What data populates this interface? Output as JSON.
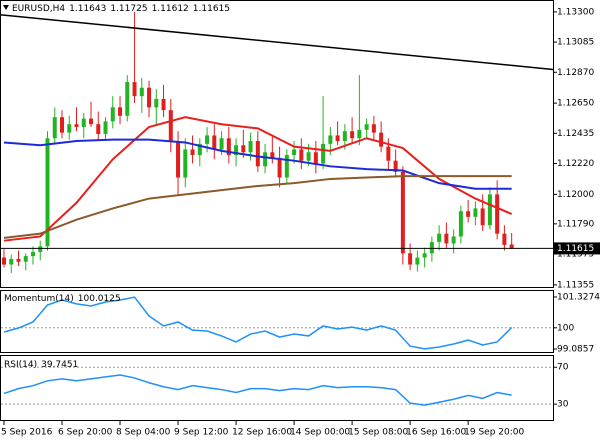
{
  "chart_data": [
    {
      "type": "candlestick",
      "symbol": "EURUSD,H4",
      "open": [
        1.1155,
        1.115,
        1.1154,
        1.1152,
        1.1156,
        1.1159,
        1.1163,
        1.124,
        1.1255,
        1.1244,
        1.125,
        1.1248,
        1.1254,
        1.125,
        1.1243,
        1.1252,
        1.1262,
        1.1256,
        1.128,
        1.127,
        1.1276,
        1.1262,
        1.1268,
        1.126,
        1.1238,
        1.1212,
        1.1232,
        1.1228,
        1.1236,
        1.1242,
        1.1232,
        1.124,
        1.1228,
        1.1235,
        1.123,
        1.1238,
        1.122,
        1.123,
        1.1226,
        1.1212,
        1.1228,
        1.1232,
        1.1224,
        1.123,
        1.1222,
        1.1236,
        1.1242,
        1.1238,
        1.1245,
        1.124,
        1.1246,
        1.125,
        1.1244,
        1.1234,
        1.1224,
        1.1216,
        1.1158,
        1.115,
        1.1155,
        1.1158,
        1.1166,
        1.1172,
        1.1165,
        1.117,
        1.1188,
        1.1184,
        1.119,
        1.1178,
        1.12,
        1.1172,
        1.11643
      ],
      "high": [
        1.1161,
        1.1157,
        1.116,
        1.1158,
        1.1163,
        1.1167,
        1.1245,
        1.1262,
        1.126,
        1.1256,
        1.1262,
        1.1258,
        1.1266,
        1.1259,
        1.1255,
        1.127,
        1.127,
        1.1285,
        1.133,
        1.1283,
        1.1281,
        1.1275,
        1.1278,
        1.1268,
        1.1245,
        1.124,
        1.1242,
        1.124,
        1.1248,
        1.125,
        1.1245,
        1.1248,
        1.124,
        1.1246,
        1.1244,
        1.1245,
        1.1236,
        1.1242,
        1.1234,
        1.1232,
        1.1238,
        1.124,
        1.1236,
        1.1238,
        1.127,
        1.1248,
        1.1252,
        1.125,
        1.1255,
        1.1285,
        1.1254,
        1.1256,
        1.1252,
        1.124,
        1.1232,
        1.122,
        1.1165,
        1.116,
        1.1162,
        1.117,
        1.1178,
        1.118,
        1.1175,
        1.1192,
        1.1196,
        1.1195,
        1.12,
        1.1205,
        1.121,
        1.1178,
        1.11725
      ],
      "low": [
        1.1148,
        1.1144,
        1.1149,
        1.1146,
        1.115,
        1.1153,
        1.116,
        1.1236,
        1.124,
        1.1239,
        1.1245,
        1.124,
        1.1248,
        1.1238,
        1.1238,
        1.1247,
        1.125,
        1.1252,
        1.1265,
        1.1258,
        1.1255,
        1.125,
        1.1255,
        1.123,
        1.12,
        1.1205,
        1.1222,
        1.122,
        1.123,
        1.1225,
        1.1228,
        1.1222,
        1.122,
        1.1226,
        1.1224,
        1.1216,
        1.1215,
        1.1222,
        1.1205,
        1.1208,
        1.1222,
        1.1218,
        1.122,
        1.1215,
        1.1218,
        1.1228,
        1.1235,
        1.1232,
        1.1236,
        1.1235,
        1.124,
        1.1238,
        1.123,
        1.1218,
        1.1212,
        1.115,
        1.1146,
        1.1145,
        1.1148,
        1.1152,
        1.116,
        1.1162,
        1.1158,
        1.1165,
        1.118,
        1.1178,
        1.1174,
        1.1175,
        1.1168,
        1.116,
        1.11612
      ],
      "close": [
        1.115,
        1.1154,
        1.1152,
        1.1156,
        1.1159,
        1.1163,
        1.124,
        1.1255,
        1.1244,
        1.125,
        1.1248,
        1.1254,
        1.125,
        1.1243,
        1.1252,
        1.1262,
        1.1256,
        1.128,
        1.127,
        1.1276,
        1.1262,
        1.1268,
        1.126,
        1.1238,
        1.1212,
        1.1232,
        1.1228,
        1.1236,
        1.1242,
        1.1232,
        1.124,
        1.1228,
        1.1235,
        1.123,
        1.1238,
        1.122,
        1.123,
        1.1226,
        1.1212,
        1.1228,
        1.1232,
        1.1224,
        1.123,
        1.1222,
        1.1236,
        1.1242,
        1.1238,
        1.1245,
        1.124,
        1.1246,
        1.125,
        1.1244,
        1.1234,
        1.1224,
        1.1216,
        1.1158,
        1.115,
        1.1155,
        1.1158,
        1.1166,
        1.1172,
        1.1165,
        1.117,
        1.1188,
        1.1184,
        1.119,
        1.1178,
        1.12,
        1.1172,
        1.1164,
        1.11615
      ],
      "up_color": "#22b422",
      "down_color": "#e01e1e",
      "series": [
        {
          "color": "#e8201c",
          "x": [
            0,
            5,
            10,
            15,
            20,
            25,
            30,
            35,
            40,
            45,
            50,
            55,
            60,
            65,
            70
          ],
          "values": [
            1.1167,
            1.117,
            1.1194,
            1.1225,
            1.1248,
            1.1255,
            1.125,
            1.1247,
            1.1234,
            1.1231,
            1.124,
            1.1233,
            1.1211,
            1.1197,
            1.1186
          ]
        },
        {
          "color": "#1c2ad8",
          "x": [
            0,
            5,
            10,
            15,
            20,
            25,
            30,
            35,
            40,
            45,
            50,
            55,
            60,
            65,
            70
          ],
          "values": [
            1.1237,
            1.1235,
            1.1238,
            1.1239,
            1.1239,
            1.1237,
            1.1231,
            1.1227,
            1.1224,
            1.122,
            1.1218,
            1.1217,
            1.1208,
            1.1204,
            1.1204
          ]
        },
        {
          "color": "#8b5a2b",
          "x": [
            0,
            5,
            10,
            15,
            20,
            25,
            30,
            35,
            40,
            45,
            50,
            55,
            60,
            65,
            70
          ],
          "values": [
            1.1169,
            1.1172,
            1.1182,
            1.119,
            1.1197,
            1.12,
            1.1203,
            1.1206,
            1.1208,
            1.1211,
            1.1212,
            1.1213,
            1.1213,
            1.1213,
            1.1213
          ]
        }
      ],
      "trendline": {
        "color": "#000000",
        "x": [
          -0.55,
          75.7
        ],
        "values": [
          1.1328,
          1.1289
        ]
      },
      "xlim": [
        -0.55,
        75.7
      ],
      "ylim": [
        1.1134,
        1.13385
      ],
      "yticks": [
        {
          "value": 1.133,
          "label": "1.13300"
        },
        {
          "value": 1.13085,
          "label": "1.13085"
        },
        {
          "value": 1.1287,
          "label": "1.12870"
        },
        {
          "value": 1.1265,
          "label": "1.12650"
        },
        {
          "value": 1.12435,
          "label": "1.12435"
        },
        {
          "value": 1.1222,
          "label": "1.12220"
        },
        {
          "value": 1.12,
          "label": "1.12000"
        },
        {
          "value": 1.1179,
          "label": "1.11790"
        },
        {
          "value": 1.11575,
          "label": "1.11575"
        },
        {
          "value": 1.11355,
          "label": "1.11355"
        }
      ],
      "xticks": [
        {
          "value": 0,
          "label": "5 Sep 2016"
        },
        {
          "value": 8,
          "label": "6 Sep 20:00"
        },
        {
          "value": 16,
          "label": "8 Sep 04:00"
        },
        {
          "value": 24,
          "label": "9 Sep 12:00"
        },
        {
          "value": 32,
          "label": "12 Sep 16:00"
        },
        {
          "value": 40,
          "label": "14 Sep 00:00"
        },
        {
          "value": 48,
          "label": "15 Sep 08:00"
        },
        {
          "value": 56,
          "label": "16 Sep 16:00"
        },
        {
          "value": 64,
          "label": "19 Sep 20:00"
        }
      ]
    },
    {
      "type": "line",
      "name": "Momentum(14)",
      "color": "#1e90ff",
      "x": [
        0,
        2,
        4,
        6,
        8,
        10,
        12,
        14,
        16,
        18,
        20,
        22,
        24,
        26,
        28,
        30,
        32,
        34,
        36,
        38,
        40,
        42,
        44,
        46,
        48,
        50,
        52,
        54,
        56,
        58,
        60,
        62,
        64,
        66,
        68,
        70
      ],
      "values": [
        99.82,
        99.99,
        100.25,
        100.98,
        101.2,
        101.03,
        100.94,
        101.11,
        101.2,
        101.32,
        100.51,
        100.08,
        100.25,
        99.9,
        99.86,
        99.65,
        99.39,
        99.73,
        99.86,
        99.6,
        99.73,
        99.65,
        100.08,
        99.95,
        100.03,
        99.9,
        100.08,
        99.9,
        99.21,
        99.09,
        99.17,
        99.3,
        99.47,
        99.26,
        99.39,
        100.0125
      ],
      "xlim": [
        -0.55,
        75.7
      ],
      "ylim": [
        99.0857,
        101.3274
      ],
      "yticks": [
        101.3274,
        100,
        99.0857
      ]
    },
    {
      "type": "line",
      "name": "RSI(14)",
      "color": "#1e90ff",
      "x": [
        0,
        2,
        4,
        6,
        8,
        10,
        12,
        14,
        16,
        18,
        20,
        22,
        24,
        26,
        28,
        30,
        32,
        34,
        36,
        38,
        40,
        42,
        44,
        46,
        48,
        50,
        52,
        54,
        56,
        58,
        60,
        62,
        64,
        66,
        68,
        70
      ],
      "values": [
        41.6,
        46.8,
        50,
        55.3,
        57.4,
        55.3,
        57.4,
        59.5,
        61.6,
        58.4,
        53.2,
        48.9,
        45.8,
        50,
        47.9,
        45.8,
        42.6,
        46.8,
        46.8,
        44.7,
        46.8,
        45.8,
        50,
        47.9,
        48.9,
        48.9,
        47.9,
        45.8,
        31.1,
        28.9,
        32.1,
        35.3,
        39.5,
        36.3,
        42.6,
        39.7451
      ],
      "xlim": [
        -0.55,
        75.7
      ],
      "ylim": [
        15,
        80
      ],
      "yticks": [
        70,
        30
      ]
    }
  ]
}
